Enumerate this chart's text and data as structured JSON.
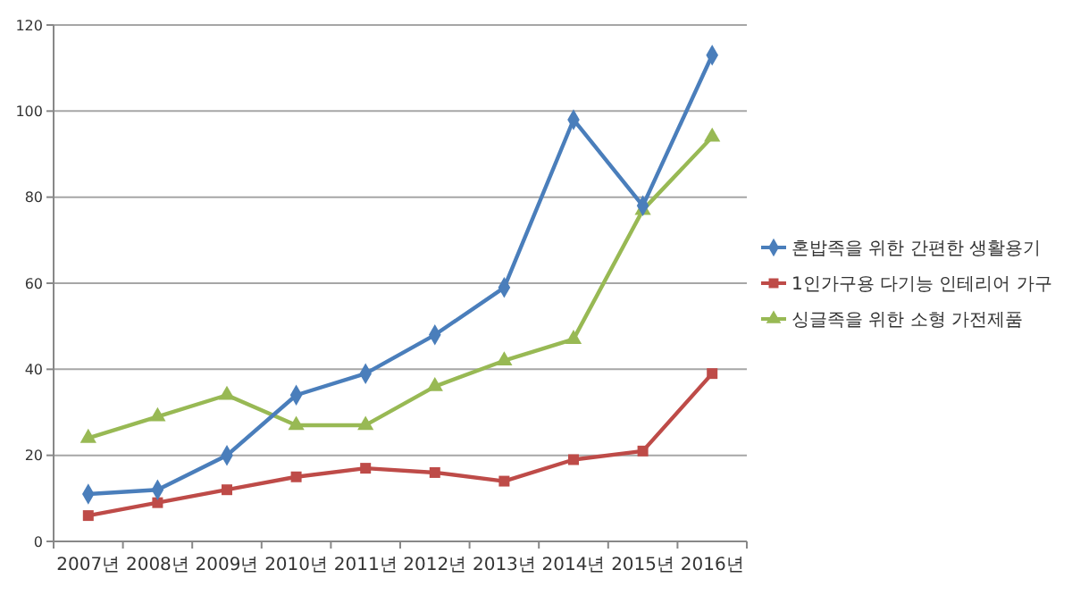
{
  "chart_data": {
    "type": "line",
    "categories": [
      "2007년",
      "2008년",
      "2009년",
      "2010년",
      "2011년",
      "2012년",
      "2013년",
      "2014년",
      "2015년",
      "2016년"
    ],
    "series": [
      {
        "name": "혼밥족을 위한 간편한 생활용기",
        "color": "#4a7ebb",
        "marker": "diamond",
        "values": [
          11,
          12,
          20,
          34,
          39,
          48,
          59,
          98,
          78,
          113
        ]
      },
      {
        "name": "1인가구용 다기능 인테리어 가구",
        "color": "#be4b48",
        "marker": "square",
        "values": [
          6,
          9,
          12,
          15,
          17,
          16,
          14,
          19,
          21,
          39
        ]
      },
      {
        "name": "싱글족을 위한 소형 가전제품",
        "color": "#98b954",
        "marker": "triangle",
        "values": [
          24,
          29,
          34,
          27,
          27,
          36,
          42,
          47,
          77,
          94
        ]
      }
    ],
    "ylim": [
      0,
      120
    ],
    "yticks": [
      0,
      20,
      40,
      60,
      80,
      100,
      120
    ],
    "grid": "y",
    "legend": "right"
  }
}
